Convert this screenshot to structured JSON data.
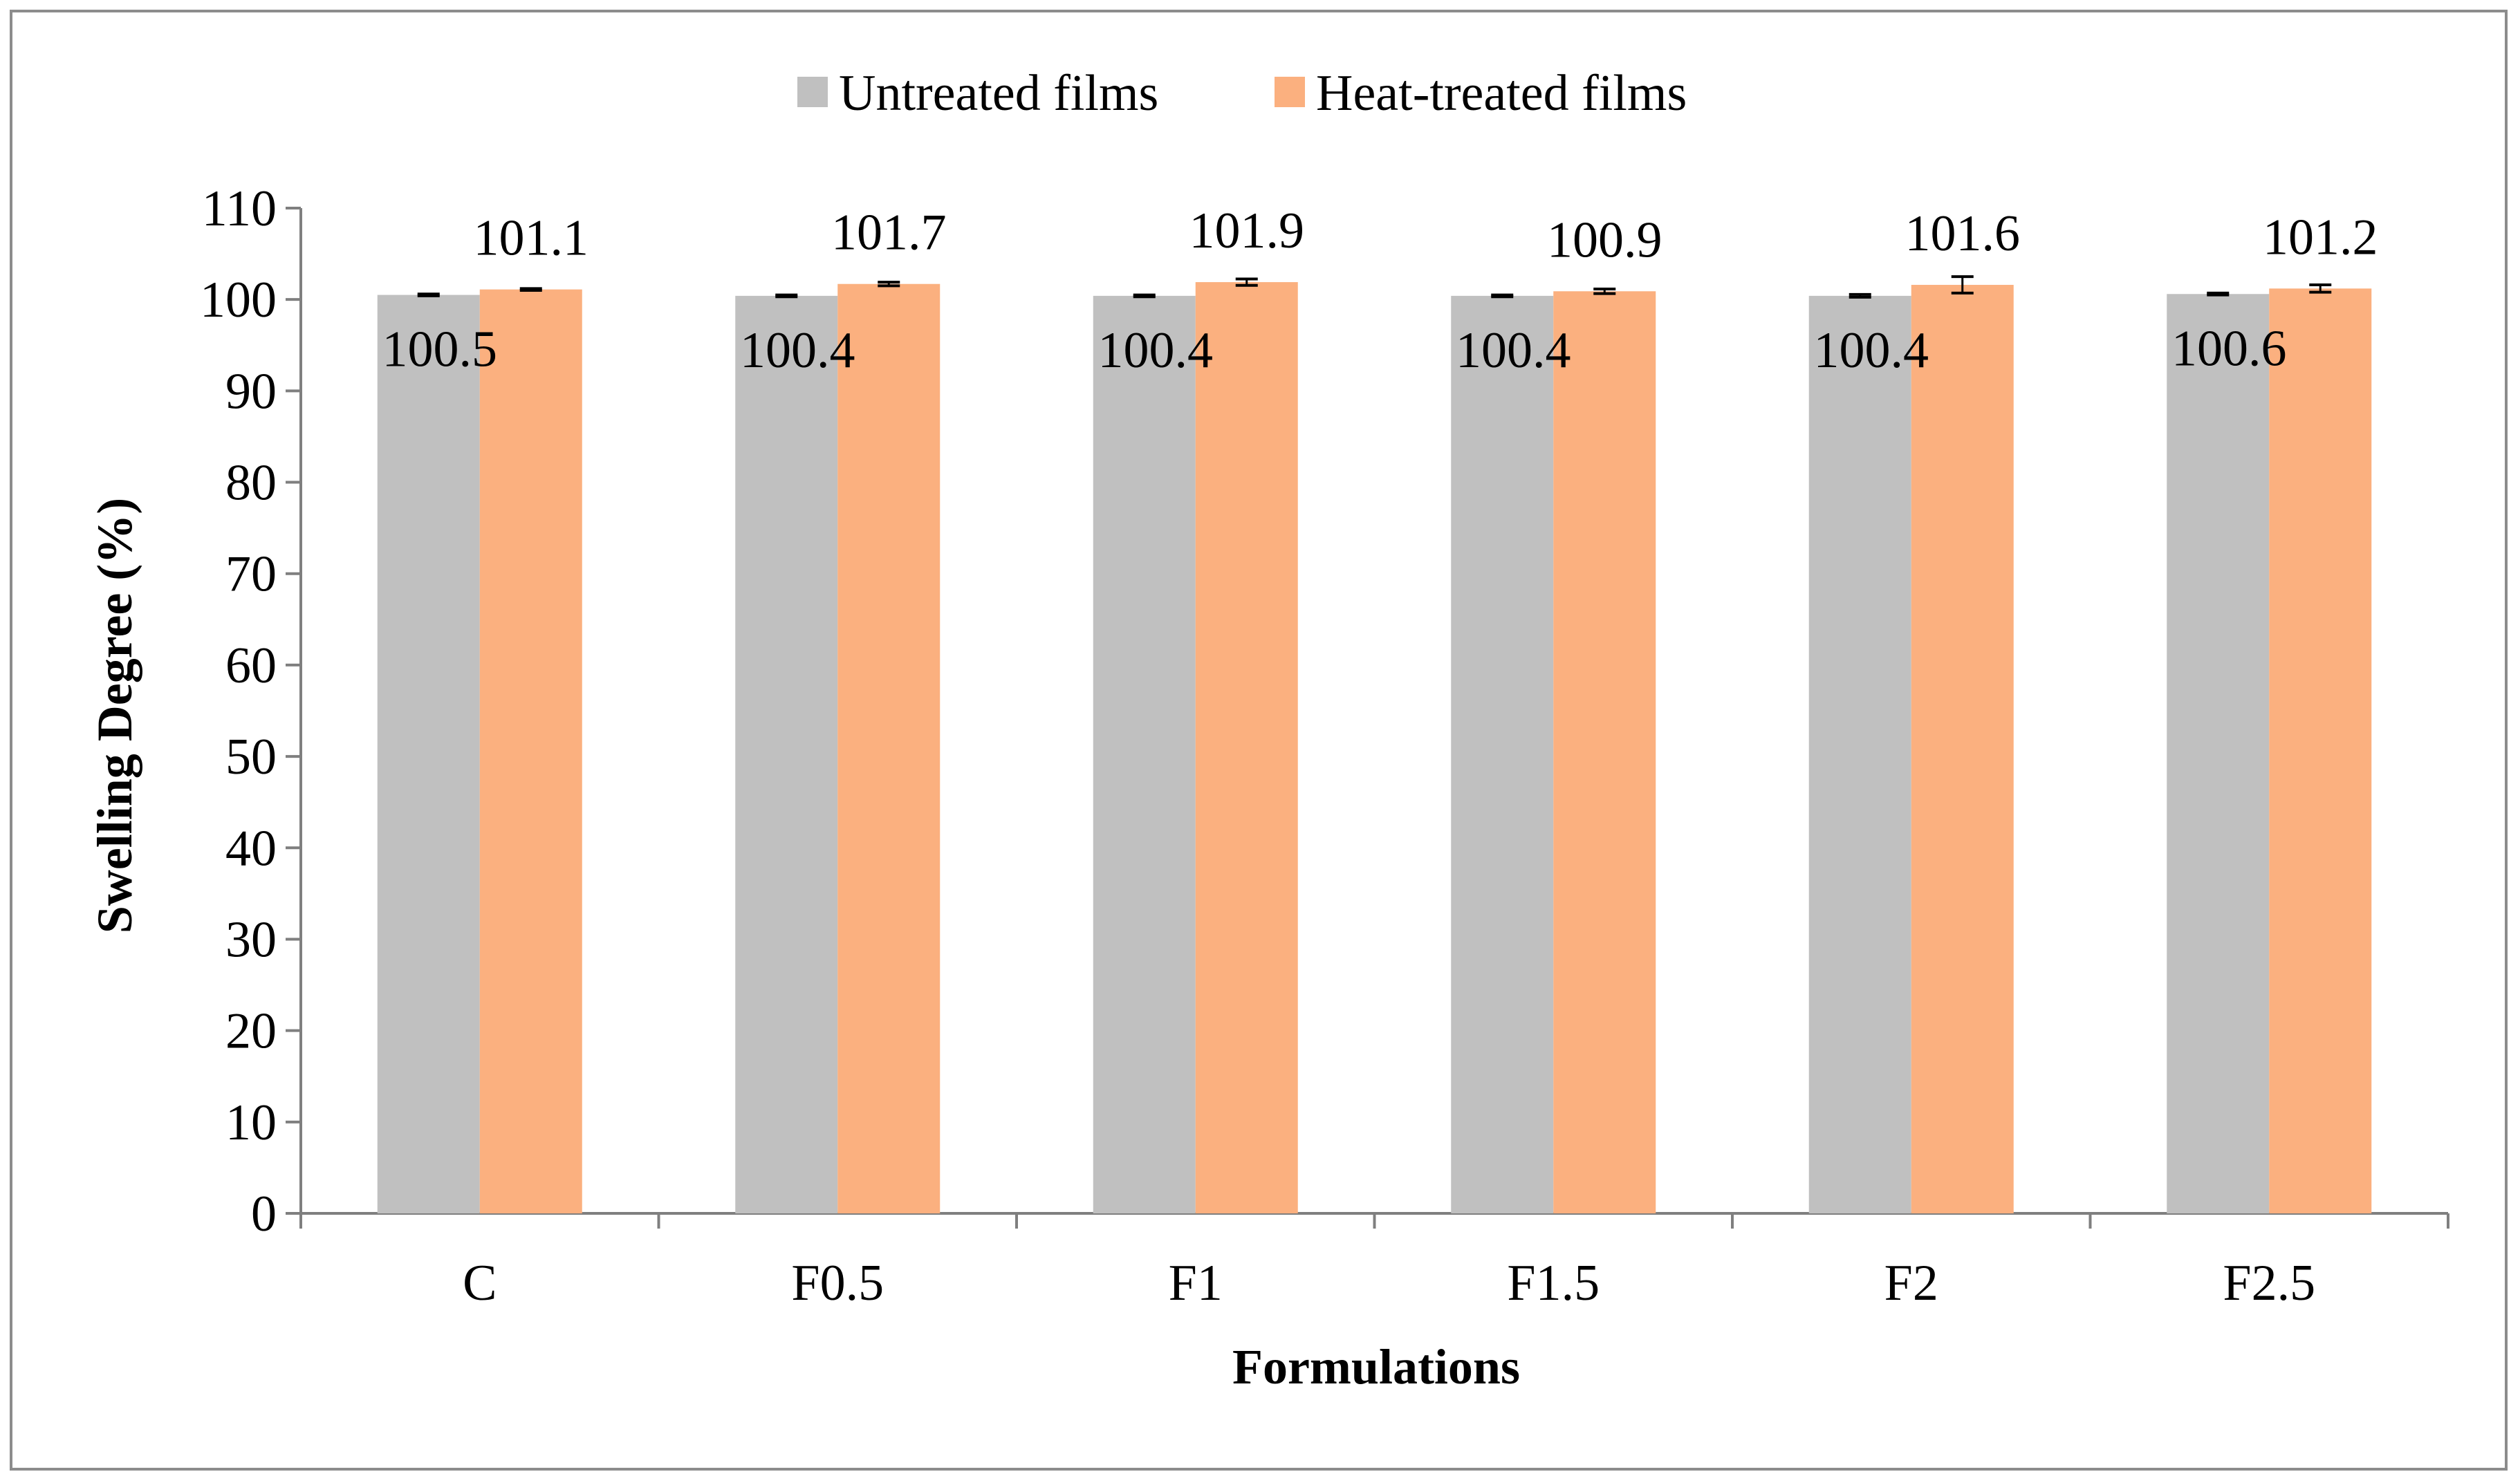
{
  "chart_data": {
    "type": "bar",
    "title": "",
    "xlabel": "Formulations",
    "ylabel": "Swelling Degree (%)",
    "categories": [
      "C",
      "F0.5",
      "F1",
      "F1.5",
      "F2",
      "F2.5"
    ],
    "ylim": [
      0,
      110
    ],
    "yticks": [
      0,
      10,
      20,
      30,
      40,
      50,
      60,
      70,
      80,
      90,
      100,
      110
    ],
    "grid": false,
    "legend_position": "top-center",
    "series": [
      {
        "name": "Untreated films",
        "color": "#c0c0c0",
        "values": [
          100.5,
          100.4,
          100.4,
          100.4,
          100.4,
          100.6
        ],
        "labels": [
          "100.5",
          "100.4",
          "100.4",
          "100.4",
          "100.4",
          "100.6"
        ],
        "errors": [
          0.1,
          0.1,
          0.1,
          0.1,
          0.15,
          0.1
        ]
      },
      {
        "name": "Heat-treated films",
        "color": "#fbb07f",
        "values": [
          101.1,
          101.7,
          101.9,
          100.9,
          101.6,
          101.2
        ],
        "labels": [
          "101.1",
          "101.7",
          "101.9",
          "100.9",
          "101.6",
          "101.2"
        ],
        "errors": [
          0.1,
          0.2,
          0.35,
          0.25,
          0.9,
          0.4
        ]
      }
    ]
  }
}
